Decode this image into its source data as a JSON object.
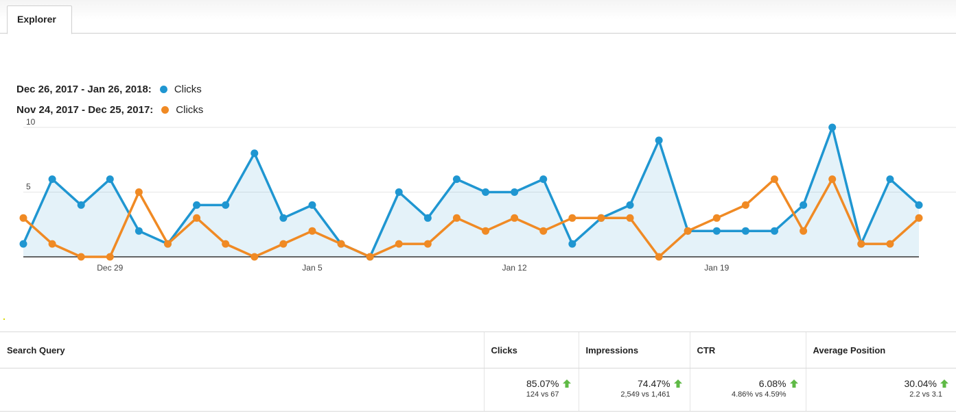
{
  "tabs": {
    "explorer": "Explorer"
  },
  "chart_data": {
    "type": "line",
    "x": [
      "Dec 26",
      "Dec 27",
      "Dec 28",
      "Dec 29",
      "Dec 30",
      "Dec 31",
      "Jan 1",
      "Jan 2",
      "Jan 3",
      "Jan 4",
      "Jan 5",
      "Jan 6",
      "Jan 7",
      "Jan 8",
      "Jan 9",
      "Jan 10",
      "Jan 11",
      "Jan 12",
      "Jan 13",
      "Jan 14",
      "Jan 15",
      "Jan 16",
      "Jan 17",
      "Jan 18",
      "Jan 19",
      "Jan 20",
      "Jan 21",
      "Jan 22",
      "Jan 23",
      "Jan 24",
      "Jan 25",
      "Jan 26"
    ],
    "tick_labels": [
      "Dec 29",
      "Jan 5",
      "Jan 12",
      "Jan 19"
    ],
    "y_ticks": [
      "5",
      "10"
    ],
    "ylim": [
      0,
      10
    ],
    "grid": true,
    "series": [
      {
        "range": "Dec 26, 2017 - Jan 26, 2018:",
        "name": "Clicks",
        "color": "#1f96d1",
        "fill": true,
        "values": [
          1,
          6,
          4,
          6,
          2,
          1,
          4,
          4,
          8,
          3,
          4,
          1,
          0,
          5,
          3,
          6,
          5,
          5,
          6,
          1,
          3,
          4,
          9,
          2,
          2,
          2,
          2,
          4,
          10,
          1,
          6,
          4
        ]
      },
      {
        "range": "Nov 24, 2017 - Dec 25, 2017:",
        "name": "Clicks",
        "color": "#f08a24",
        "fill": false,
        "values": [
          3,
          1,
          0,
          0,
          5,
          1,
          3,
          1,
          0,
          1,
          2,
          1,
          0,
          1,
          1,
          3,
          2,
          3,
          2,
          3,
          3,
          3,
          0,
          2,
          3,
          4,
          6,
          2,
          6,
          1,
          1,
          3
        ]
      }
    ]
  },
  "table": {
    "headers": {
      "query": "Search Query",
      "clicks": "Clicks",
      "impressions": "Impressions",
      "ctr": "CTR",
      "position": "Average Position"
    },
    "summary": {
      "clicks": {
        "pct": "85.07%",
        "cmp": "124 vs 67"
      },
      "impressions": {
        "pct": "74.47%",
        "cmp": "2,549 vs 1,461"
      },
      "ctr": {
        "pct": "6.08%",
        "cmp": "4.86% vs 4.59%"
      },
      "position": {
        "pct": "30.04%",
        "cmp": "2.2 vs 3.1"
      }
    },
    "arrow_color": "#5fba46"
  }
}
